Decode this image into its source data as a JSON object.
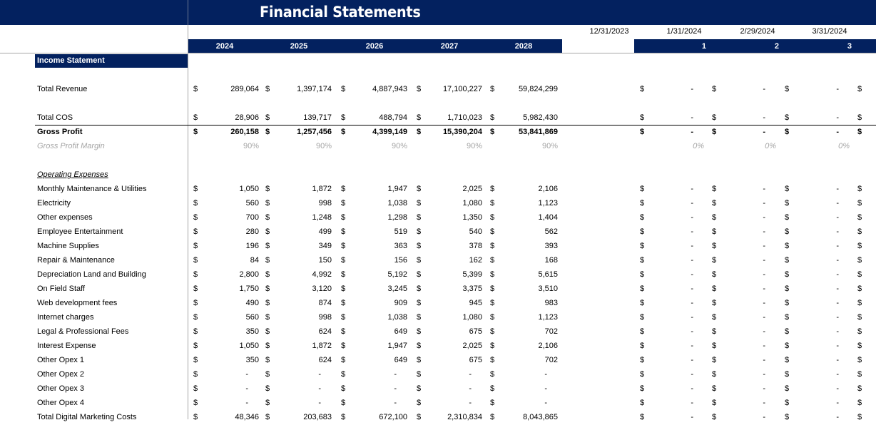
{
  "title": "Financial Statements",
  "dates": [
    "12/31/2023",
    "1/31/2024",
    "2/29/2024",
    "3/31/2024"
  ],
  "years": [
    "2024",
    "2025",
    "2026",
    "2027",
    "2028"
  ],
  "periods": [
    "1",
    "2",
    "3"
  ],
  "section_label": "Income Statement",
  "currency_symbol": "$",
  "dash": "-",
  "rows": [
    {
      "label": "Total Revenue",
      "values": [
        "289,064",
        "1,397,174",
        "4,887,943",
        "17,100,227",
        "59,824,299"
      ],
      "monthly": [
        "-",
        "-",
        "-"
      ]
    },
    {
      "label": "Total COS",
      "values": [
        "28,906",
        "139,717",
        "488,794",
        "1,710,023",
        "5,982,430"
      ],
      "monthly": [
        "-",
        "-",
        "-"
      ]
    },
    {
      "label": "Gross Profit",
      "values": [
        "260,158",
        "1,257,456",
        "4,399,149",
        "15,390,204",
        "53,841,869"
      ],
      "monthly": [
        "-",
        "-",
        "-"
      ]
    },
    {
      "label": "Gross Profit Margin",
      "values": [
        "90%",
        "90%",
        "90%",
        "90%",
        "90%"
      ],
      "monthly": [
        "0%",
        "0%",
        "0%"
      ]
    },
    {
      "label": "Operating Expenses"
    },
    {
      "label": "Monthly Maintenance & Utilities",
      "values": [
        "1,050",
        "1,872",
        "1,947",
        "2,025",
        "2,106"
      ],
      "monthly": [
        "-",
        "-",
        "-"
      ]
    },
    {
      "label": "Electricity",
      "values": [
        "560",
        "998",
        "1,038",
        "1,080",
        "1,123"
      ],
      "monthly": [
        "-",
        "-",
        "-"
      ]
    },
    {
      "label": "Other expenses",
      "values": [
        "700",
        "1,248",
        "1,298",
        "1,350",
        "1,404"
      ],
      "monthly": [
        "-",
        "-",
        "-"
      ]
    },
    {
      "label": "Employee Entertainment",
      "values": [
        "280",
        "499",
        "519",
        "540",
        "562"
      ],
      "monthly": [
        "-",
        "-",
        "-"
      ]
    },
    {
      "label": "Machine Supplies",
      "values": [
        "196",
        "349",
        "363",
        "378",
        "393"
      ],
      "monthly": [
        "-",
        "-",
        "-"
      ]
    },
    {
      "label": "Repair & Maintenance",
      "values": [
        "84",
        "150",
        "156",
        "162",
        "168"
      ],
      "monthly": [
        "-",
        "-",
        "-"
      ]
    },
    {
      "label": "Depreciation Land and Building",
      "values": [
        "2,800",
        "4,992",
        "5,192",
        "5,399",
        "5,615"
      ],
      "monthly": [
        "-",
        "-",
        "-"
      ]
    },
    {
      "label": "On Field Staff",
      "values": [
        "1,750",
        "3,120",
        "3,245",
        "3,375",
        "3,510"
      ],
      "monthly": [
        "-",
        "-",
        "-"
      ]
    },
    {
      "label": "Web development fees",
      "values": [
        "490",
        "874",
        "909",
        "945",
        "983"
      ],
      "monthly": [
        "-",
        "-",
        "-"
      ]
    },
    {
      "label": "Internet charges",
      "values": [
        "560",
        "998",
        "1,038",
        "1,080",
        "1,123"
      ],
      "monthly": [
        "-",
        "-",
        "-"
      ]
    },
    {
      "label": "Legal & Professional Fees",
      "values": [
        "350",
        "624",
        "649",
        "675",
        "702"
      ],
      "monthly": [
        "-",
        "-",
        "-"
      ]
    },
    {
      "label": "Interest Expense",
      "values": [
        "1,050",
        "1,872",
        "1,947",
        "2,025",
        "2,106"
      ],
      "monthly": [
        "-",
        "-",
        "-"
      ]
    },
    {
      "label": "Other Opex 1",
      "values": [
        "350",
        "624",
        "649",
        "675",
        "702"
      ],
      "monthly": [
        "-",
        "-",
        "-"
      ]
    },
    {
      "label": "Other Opex 2",
      "values": [
        "-",
        "-",
        "-",
        "-",
        "-"
      ],
      "monthly": [
        "-",
        "-",
        "-"
      ]
    },
    {
      "label": "Other Opex 3",
      "values": [
        "-",
        "-",
        "-",
        "-",
        "-"
      ],
      "monthly": [
        "-",
        "-",
        "-"
      ]
    },
    {
      "label": "Other Opex 4",
      "values": [
        "-",
        "-",
        "-",
        "-",
        "-"
      ],
      "monthly": [
        "-",
        "-",
        "-"
      ]
    },
    {
      "label": "Total Digital Marketing Costs",
      "values": [
        "48,346",
        "203,683",
        "672,100",
        "2,310,834",
        "8,043,865"
      ],
      "monthly": [
        "-",
        "-",
        "-"
      ]
    }
  ]
}
